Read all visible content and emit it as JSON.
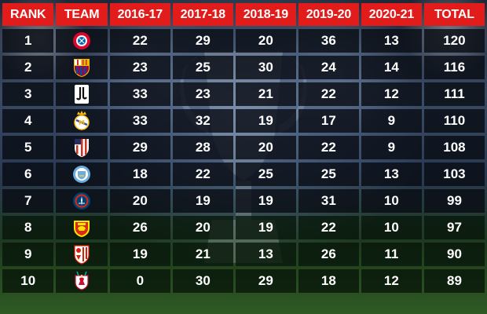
{
  "headers": {
    "rank": "RANK",
    "team": "TEAM",
    "y1": "2016-17",
    "y2": "2017-18",
    "y3": "2018-19",
    "y4": "2019-20",
    "y5": "2020-21",
    "total": "TOTAL"
  },
  "rows": [
    {
      "rank": "1",
      "crest": "bayern-munich-crest",
      "crest_color": "#dc052d",
      "y1": "22",
      "y2": "29",
      "y3": "20",
      "y4": "36",
      "y5": "13",
      "total": "120"
    },
    {
      "rank": "2",
      "crest": "barcelona-crest",
      "crest_color": "#a50044",
      "y1": "23",
      "y2": "25",
      "y3": "30",
      "y4": "24",
      "y5": "14",
      "total": "116"
    },
    {
      "rank": "3",
      "crest": "juventus-crest",
      "crest_color": "#ffffff",
      "y1": "33",
      "y2": "23",
      "y3": "21",
      "y4": "22",
      "y5": "12",
      "total": "111"
    },
    {
      "rank": "4",
      "crest": "real-madrid-crest",
      "crest_color": "#febe10",
      "y1": "33",
      "y2": "32",
      "y3": "19",
      "y4": "17",
      "y5": "9",
      "total": "110"
    },
    {
      "rank": "5",
      "crest": "atletico-madrid-crest",
      "crest_color": "#cb3524",
      "y1": "29",
      "y2": "28",
      "y3": "20",
      "y4": "22",
      "y5": "9",
      "total": "108"
    },
    {
      "rank": "6",
      "crest": "manchester-city-crest",
      "crest_color": "#6cabdd",
      "y1": "18",
      "y2": "22",
      "y3": "25",
      "y4": "25",
      "y5": "13",
      "total": "103"
    },
    {
      "rank": "7",
      "crest": "psg-crest",
      "crest_color": "#004170",
      "y1": "20",
      "y2": "19",
      "y3": "19",
      "y4": "31",
      "y5": "10",
      "total": "99"
    },
    {
      "rank": "8",
      "crest": "manchester-united-crest",
      "crest_color": "#da291c",
      "y1": "26",
      "y2": "20",
      "y3": "19",
      "y4": "22",
      "y5": "10",
      "total": "97"
    },
    {
      "rank": "9",
      "crest": "sevilla-crest",
      "crest_color": "#d81e05",
      "y1": "19",
      "y2": "21",
      "y3": "13",
      "y4": "26",
      "y5": "11",
      "total": "90"
    },
    {
      "rank": "10",
      "crest": "liverpool-crest",
      "crest_color": "#c8102e",
      "y1": "0",
      "y2": "30",
      "y3": "29",
      "y4": "18",
      "y5": "12",
      "total": "89"
    }
  ]
}
